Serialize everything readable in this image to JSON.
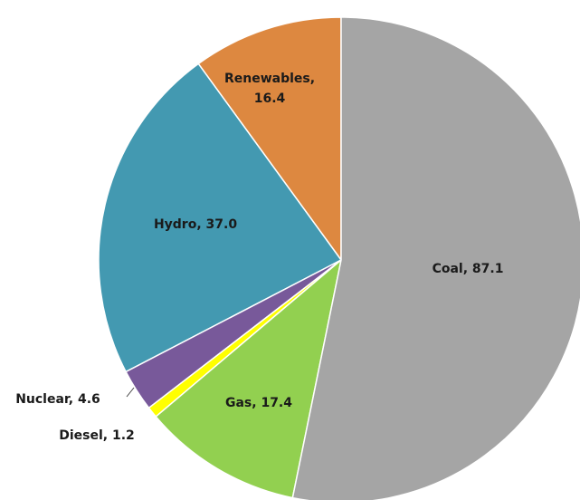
{
  "chart_data": {
    "type": "pie",
    "categories": [
      "Coal",
      "Gas",
      "Diesel",
      "Nuclear",
      "Hydro",
      "Renewables"
    ],
    "values": [
      87.1,
      17.4,
      1.2,
      4.6,
      37.0,
      16.4
    ],
    "value_labels": [
      "Coal, 87.1",
      "Gas, 17.4",
      "Diesel, 1.2",
      "Nuclear, 4.6",
      "Hydro, 37.0",
      "Renewables, 16.4"
    ],
    "colors": [
      "#a5a5a5",
      "#92d050",
      "#ffff00",
      "#78599a",
      "#4399b1",
      "#dd8840"
    ]
  }
}
